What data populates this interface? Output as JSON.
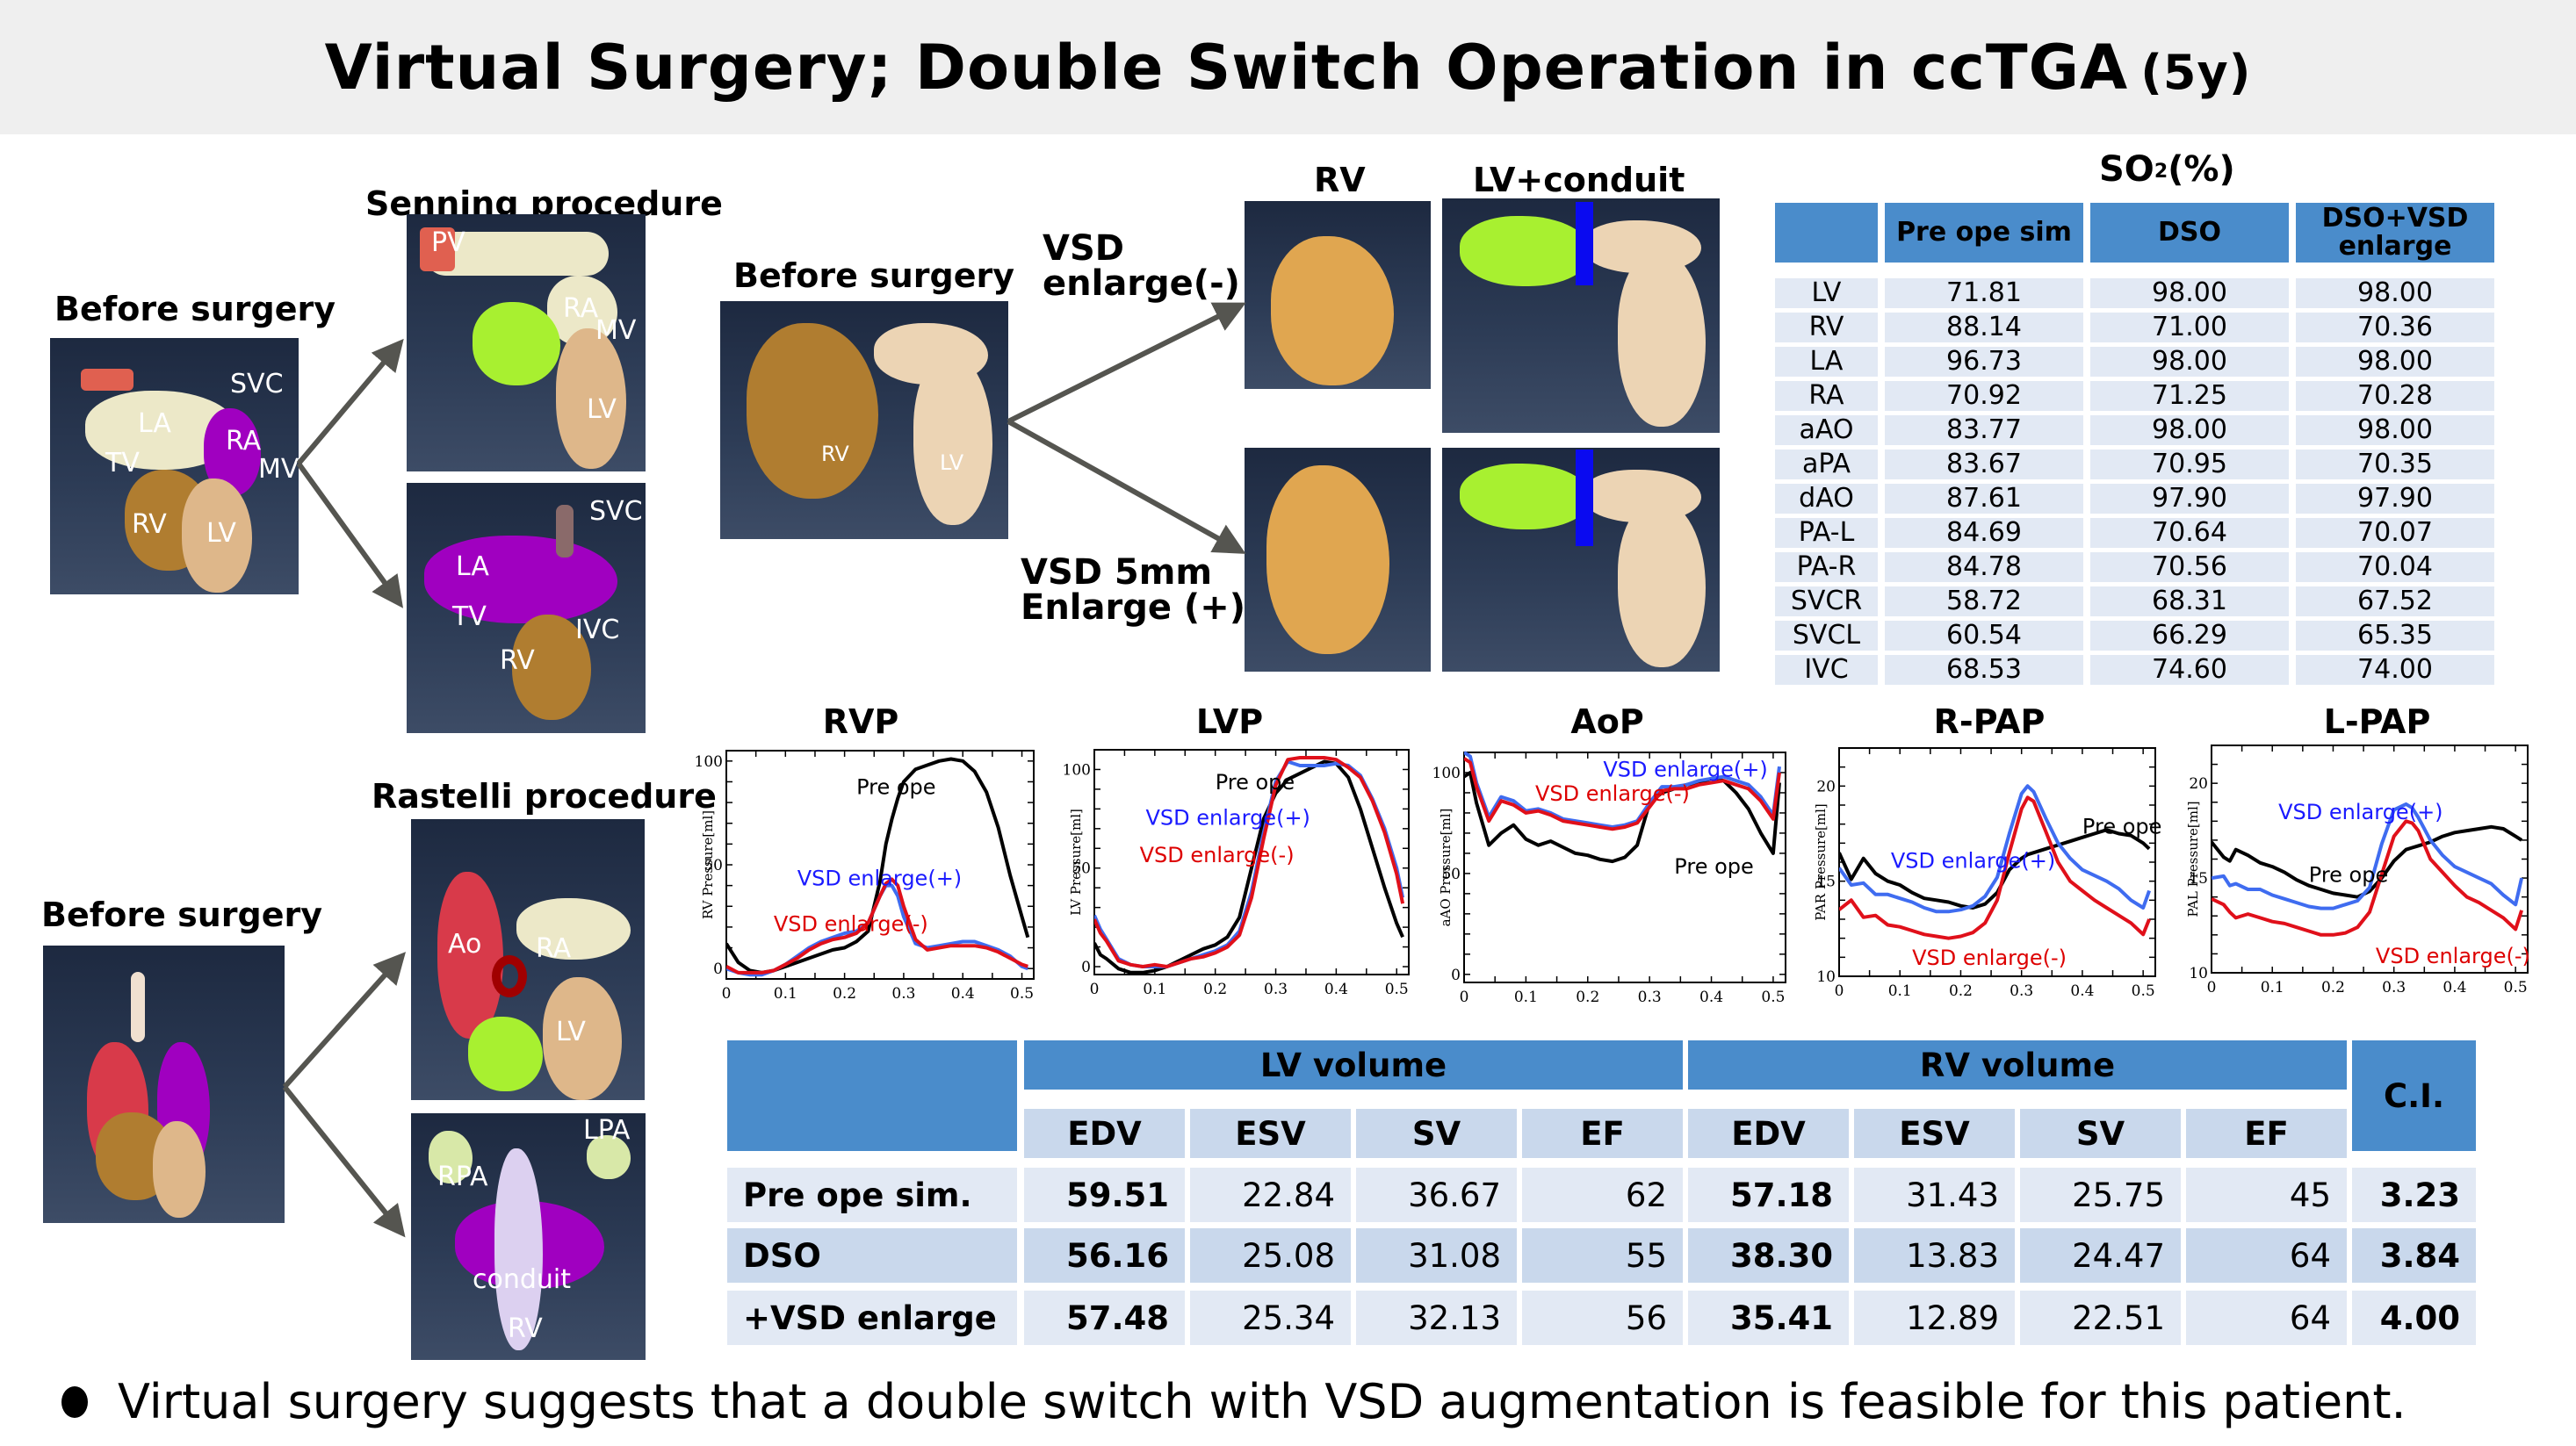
{
  "title": {
    "main": "Virtual Surgery; Double Switch Operation in ccTGA",
    "suffix": "(5y)"
  },
  "senning": {
    "before_label": "Before surgery",
    "procedure_label": "Senning procedure",
    "before_tags": [
      "SVC",
      "LA",
      "RA",
      "TV",
      "MV",
      "RV",
      "LV"
    ],
    "top_tags": [
      "PV",
      "RA",
      "MV",
      "LV"
    ],
    "bottom_tags": [
      "SVC",
      "LA",
      "TV",
      "IVC",
      "RV"
    ]
  },
  "rastelli": {
    "before_label": "Before surgery",
    "procedure_label": "Rastelli procedure",
    "top_tags": [
      "Ao",
      "RA",
      "LV"
    ],
    "bottom_tags": [
      "LPA",
      "RPA",
      "conduit",
      "RV"
    ]
  },
  "vsd": {
    "before_label": "Before surgery",
    "before_tags": [
      "RV",
      "LV"
    ],
    "col_rv": "RV",
    "col_lv": "LV+conduit",
    "branch_minus": [
      "VSD",
      "enlarge(-)"
    ],
    "branch_plus": [
      "VSD 5mm",
      "Enlarge (+)"
    ]
  },
  "so2_table": {
    "title": "SO",
    "title_sub": "2",
    "title_tail": "(%)",
    "columns": [
      "",
      "Pre ope sim",
      "DSO",
      "DSO+VSD enlarge"
    ],
    "rows": [
      [
        "LV",
        "71.81",
        "98.00",
        "98.00"
      ],
      [
        "RV",
        "88.14",
        "71.00",
        "70.36"
      ],
      [
        "LA",
        "96.73",
        "98.00",
        "98.00"
      ],
      [
        "RA",
        "70.92",
        "71.25",
        "70.28"
      ],
      [
        "aAO",
        "83.77",
        "98.00",
        "98.00"
      ],
      [
        "aPA",
        "83.67",
        "70.95",
        "70.35"
      ],
      [
        "dAO",
        "87.61",
        "97.90",
        "97.90"
      ],
      [
        "PA-L",
        "84.69",
        "70.64",
        "70.07"
      ],
      [
        "PA-R",
        "84.78",
        "70.56",
        "70.04"
      ],
      [
        "SVCR",
        "58.72",
        "68.31",
        "67.52"
      ],
      [
        "SVCL",
        "60.54",
        "66.29",
        "65.35"
      ],
      [
        "IVC",
        "68.53",
        "74.60",
        "74.00"
      ]
    ]
  },
  "series_colors": {
    "pre": "#000000",
    "plus": "#3f6cf0",
    "minus": "#e0101a",
    "plus_text": "#1a1aff",
    "minus_text": "#dd0000"
  },
  "chart_data": [
    {
      "type": "line",
      "title": "RVP",
      "ylabel": "RV Pressure[ml]",
      "xlabel": "",
      "xlim": [
        0,
        0.52
      ],
      "ylim": [
        -5,
        105
      ],
      "xticks": [
        0,
        0.1,
        0.2,
        0.3,
        0.4,
        0.5
      ],
      "yticks": [
        0,
        50,
        100
      ],
      "x": [
        0,
        0.02,
        0.04,
        0.06,
        0.08,
        0.1,
        0.12,
        0.14,
        0.16,
        0.18,
        0.2,
        0.22,
        0.24,
        0.26,
        0.27,
        0.28,
        0.29,
        0.3,
        0.32,
        0.34,
        0.36,
        0.38,
        0.4,
        0.42,
        0.44,
        0.46,
        0.48,
        0.5,
        0.51
      ],
      "series": [
        {
          "name": "Pre ope",
          "key": "pre",
          "values": [
            12,
            3,
            -1,
            -2,
            -1,
            1,
            3,
            5,
            7,
            9,
            10,
            13,
            18,
            42,
            60,
            72,
            82,
            90,
            96,
            98,
            100,
            101,
            100,
            95,
            85,
            68,
            45,
            25,
            15
          ]
        },
        {
          "name": "VSD enlarge(+)",
          "key": "plus",
          "values": [
            0,
            -2,
            -3,
            -3,
            -1,
            2,
            6,
            10,
            13,
            15,
            17,
            18,
            22,
            35,
            40,
            40,
            35,
            25,
            12,
            10,
            11,
            12,
            13,
            13,
            11,
            9,
            6,
            1,
            0
          ]
        },
        {
          "name": "VSD enlarge(-)",
          "key": "minus",
          "values": [
            1,
            -2,
            -2,
            -2,
            -1,
            2,
            5,
            9,
            12,
            14,
            15,
            17,
            22,
            35,
            41,
            43,
            40,
            30,
            14,
            9,
            10,
            11,
            11,
            11,
            10,
            8,
            5,
            2,
            1
          ]
        }
      ],
      "annotations": [
        {
          "text": "Pre ope",
          "key": "pre",
          "x": 0.22,
          "y": 84
        },
        {
          "text": "VSD enlarge(+)",
          "key": "plus",
          "x": 0.12,
          "y": 40
        },
        {
          "text": "VSD enlarge(-)",
          "key": "minus",
          "x": 0.08,
          "y": 18
        }
      ]
    },
    {
      "type": "line",
      "title": "LVP",
      "ylabel": "LV Pressure[ml]",
      "xlabel": "",
      "xlim": [
        0,
        0.52
      ],
      "ylim": [
        -4,
        110
      ],
      "xticks": [
        0,
        0.1,
        0.2,
        0.3,
        0.4,
        0.5
      ],
      "yticks": [
        0,
        50,
        100
      ],
      "x": [
        0,
        0.01,
        0.02,
        0.04,
        0.06,
        0.08,
        0.1,
        0.12,
        0.14,
        0.16,
        0.18,
        0.2,
        0.22,
        0.24,
        0.26,
        0.28,
        0.3,
        0.32,
        0.34,
        0.36,
        0.38,
        0.4,
        0.42,
        0.44,
        0.46,
        0.48,
        0.5,
        0.51
      ],
      "series": [
        {
          "name": "Pre ope",
          "key": "pre",
          "values": [
            12,
            6,
            4,
            -1,
            -3,
            -3,
            -2,
            0,
            3,
            6,
            9,
            11,
            15,
            25,
            50,
            75,
            88,
            95,
            98,
            101,
            104,
            103,
            96,
            80,
            60,
            40,
            22,
            15
          ]
        },
        {
          "name": "VSD enlarge(+)",
          "key": "plus",
          "values": [
            26,
            19,
            14,
            4,
            1,
            0,
            0,
            0,
            2,
            4,
            6,
            8,
            11,
            18,
            38,
            68,
            94,
            104,
            102,
            102,
            102,
            103,
            102,
            97,
            85,
            70,
            50,
            35
          ]
        },
        {
          "name": "VSD enlarge(-)",
          "key": "minus",
          "values": [
            24,
            17,
            13,
            3,
            1,
            0,
            1,
            0,
            2,
            4,
            5,
            7,
            10,
            16,
            35,
            65,
            92,
            105,
            106,
            106,
            106,
            105,
            101,
            96,
            84,
            68,
            47,
            32
          ]
        }
      ],
      "annotations": [
        {
          "text": "Pre ope",
          "key": "pre",
          "x": 0.2,
          "y": 90
        },
        {
          "text": "VSD enlarge(+)",
          "key": "plus",
          "x": 0.085,
          "y": 72
        },
        {
          "text": "VSD enlarge(-)",
          "key": "minus",
          "x": 0.075,
          "y": 53
        }
      ]
    },
    {
      "type": "line",
      "title": "AoP",
      "ylabel": "aAO Pressure[ml]",
      "xlabel": "",
      "xlim": [
        0,
        0.52
      ],
      "ylim": [
        -4,
        110
      ],
      "xticks": [
        0,
        0.1,
        0.2,
        0.3,
        0.4,
        0.5
      ],
      "yticks": [
        0,
        50,
        100
      ],
      "x": [
        0,
        0.01,
        0.02,
        0.04,
        0.06,
        0.08,
        0.1,
        0.12,
        0.14,
        0.16,
        0.18,
        0.2,
        0.22,
        0.24,
        0.26,
        0.28,
        0.3,
        0.32,
        0.34,
        0.36,
        0.38,
        0.4,
        0.42,
        0.44,
        0.46,
        0.48,
        0.5,
        0.51
      ],
      "series": [
        {
          "name": "Pre ope",
          "key": "pre",
          "values": [
            98,
            100,
            85,
            64,
            70,
            74,
            67,
            64,
            66,
            63,
            60,
            59,
            57,
            56,
            58,
            64,
            85,
            90,
            92,
            94,
            95,
            97,
            96,
            90,
            82,
            70,
            60,
            95
          ]
        },
        {
          "name": "VSD enlarge(+)",
          "key": "plus",
          "values": [
            110,
            108,
            95,
            78,
            88,
            86,
            81,
            82,
            80,
            77,
            76,
            75,
            74,
            73,
            74,
            76,
            85,
            93,
            93,
            94,
            96,
            97,
            98,
            96,
            94,
            88,
            79,
            103
          ]
        },
        {
          "name": "VSD enlarge(-)",
          "key": "minus",
          "values": [
            107,
            105,
            93,
            76,
            86,
            84,
            80,
            81,
            79,
            76,
            75,
            74,
            73,
            72,
            73,
            75,
            83,
            91,
            92,
            92,
            94,
            95,
            96,
            94,
            92,
            86,
            77,
            100
          ]
        }
      ],
      "annotations": [
        {
          "text": "VSD enlarge(+)",
          "key": "plus",
          "x": 0.225,
          "y": 98
        },
        {
          "text": "VSD enlarge(-)",
          "key": "minus",
          "x": 0.115,
          "y": 86
        },
        {
          "text": "Pre ope",
          "key": "pre",
          "x": 0.34,
          "y": 50
        }
      ]
    },
    {
      "type": "line",
      "title": "R-PAP",
      "ylabel": "PAR Pressure[ml]",
      "xlabel": "",
      "xlim": [
        0,
        0.52
      ],
      "ylim": [
        10,
        22
      ],
      "xticks": [
        0,
        0.1,
        0.2,
        0.3,
        0.4,
        0.5
      ],
      "yticks": [
        10,
        15,
        20
      ],
      "x": [
        0,
        0.02,
        0.04,
        0.06,
        0.08,
        0.1,
        0.12,
        0.14,
        0.16,
        0.18,
        0.2,
        0.22,
        0.24,
        0.26,
        0.28,
        0.3,
        0.31,
        0.32,
        0.34,
        0.36,
        0.38,
        0.4,
        0.42,
        0.44,
        0.46,
        0.48,
        0.5,
        0.51
      ],
      "series": [
        {
          "name": "Pre ope",
          "key": "pre",
          "values": [
            16.5,
            15.1,
            16.2,
            15.4,
            15.0,
            14.8,
            14.4,
            14.1,
            14.0,
            13.9,
            13.7,
            13.6,
            13.8,
            14.4,
            15.6,
            16.2,
            16.4,
            16.5,
            16.7,
            16.9,
            17.1,
            17.3,
            17.5,
            17.7,
            17.5,
            17.4,
            17.0,
            16.7
          ]
        },
        {
          "name": "VSD enlarge(+)",
          "key": "plus",
          "values": [
            15.7,
            14.8,
            14.9,
            14.3,
            14.3,
            14.1,
            13.9,
            13.6,
            13.4,
            13.4,
            13.5,
            13.7,
            14.2,
            15.2,
            17.5,
            19.6,
            20.0,
            19.7,
            18.3,
            17.0,
            16.2,
            15.6,
            15.3,
            15.0,
            14.6,
            14.0,
            13.6,
            14.5
          ]
        },
        {
          "name": "VSD enlarge(-)",
          "key": "minus",
          "values": [
            13.5,
            14.0,
            13.1,
            13.2,
            12.7,
            12.6,
            12.4,
            12.2,
            12.1,
            12.0,
            12.1,
            12.3,
            12.8,
            14.0,
            16.5,
            18.8,
            19.4,
            19.2,
            17.6,
            16.0,
            15.0,
            14.5,
            14.0,
            13.6,
            13.2,
            12.8,
            12.2,
            13.0
          ]
        }
      ],
      "annotations": [
        {
          "text": "Pre ope",
          "key": "pre",
          "x": 0.4,
          "y": 17.5
        },
        {
          "text": "VSD enlarge(+)",
          "key": "plus",
          "x": 0.085,
          "y": 15.7
        },
        {
          "text": "VSD enlarge(-)",
          "key": "minus",
          "x": 0.12,
          "y": 10.6
        }
      ]
    },
    {
      "type": "line",
      "title": "L-PAP",
      "ylabel": "PAL Pressure[ml]",
      "xlabel": "",
      "xlim": [
        0,
        0.52
      ],
      "ylim": [
        10,
        22
      ],
      "xticks": [
        0,
        0.1,
        0.2,
        0.3,
        0.4,
        0.5
      ],
      "yticks": [
        10,
        15,
        20
      ],
      "x": [
        0,
        0.02,
        0.03,
        0.04,
        0.06,
        0.08,
        0.1,
        0.12,
        0.14,
        0.16,
        0.18,
        0.2,
        0.22,
        0.24,
        0.26,
        0.28,
        0.3,
        0.32,
        0.33,
        0.34,
        0.36,
        0.38,
        0.4,
        0.42,
        0.44,
        0.46,
        0.48,
        0.5,
        0.51
      ],
      "series": [
        {
          "name": "Pre ope",
          "key": "pre",
          "values": [
            16.9,
            16.1,
            15.9,
            16.5,
            16.2,
            15.8,
            15.6,
            15.3,
            14.9,
            14.6,
            14.4,
            14.2,
            14.1,
            14.0,
            14.3,
            15.0,
            15.9,
            16.5,
            16.6,
            16.7,
            16.9,
            17.2,
            17.4,
            17.5,
            17.6,
            17.7,
            17.6,
            17.2,
            17.0
          ]
        },
        {
          "name": "VSD enlarge(+)",
          "key": "plus",
          "values": [
            15.0,
            15.1,
            14.6,
            14.7,
            14.4,
            14.4,
            14.1,
            13.9,
            13.7,
            13.5,
            13.4,
            13.4,
            13.6,
            13.8,
            14.5,
            16.8,
            18.6,
            18.9,
            18.7,
            18.2,
            17.0,
            16.2,
            15.6,
            15.3,
            15.0,
            14.7,
            14.1,
            13.6,
            15.0
          ]
        },
        {
          "name": "VSD enlarge(-)",
          "key": "minus",
          "values": [
            13.9,
            13.6,
            13.2,
            12.9,
            13.1,
            12.9,
            12.7,
            12.6,
            12.4,
            12.2,
            12.0,
            12.0,
            12.1,
            12.4,
            13.2,
            15.2,
            17.2,
            18.0,
            17.9,
            17.5,
            16.0,
            15.3,
            14.6,
            14.0,
            13.7,
            13.3,
            12.9,
            12.3,
            13.3
          ]
        }
      ],
      "annotations": [
        {
          "text": "VSD enlarge(+)",
          "key": "plus",
          "x": 0.11,
          "y": 18.1
        },
        {
          "text": "Pre ope",
          "key": "pre",
          "x": 0.16,
          "y": 14.8
        },
        {
          "text": "VSD enlarge(-)",
          "key": "minus",
          "x": 0.27,
          "y": 10.5
        }
      ]
    }
  ],
  "volume_table": {
    "groups": [
      "LV volume",
      "RV volume",
      "C.I."
    ],
    "subheaders": [
      "EDV",
      "ESV",
      "SV",
      "EF",
      "EDV",
      "ESV",
      "SV",
      "EF"
    ],
    "rows": [
      {
        "label": "Pre ope sim.",
        "values": [
          "59.51",
          "22.84",
          "36.67",
          "62",
          "57.18",
          "31.43",
          "25.75",
          "45"
        ],
        "ci": "3.23"
      },
      {
        "label": "DSO",
        "values": [
          "56.16",
          "25.08",
          "31.08",
          "55",
          "38.30",
          "13.83",
          "24.47",
          "64"
        ],
        "ci": "3.84"
      },
      {
        "label": "+VSD enlarge",
        "values": [
          "57.48",
          "25.34",
          "32.13",
          "56",
          "35.41",
          "12.89",
          "22.51",
          "64"
        ],
        "ci": "4.00"
      }
    ]
  },
  "conclusion": "Virtual surgery suggests that a double switch with VSD augmentation is feasible for this patient."
}
